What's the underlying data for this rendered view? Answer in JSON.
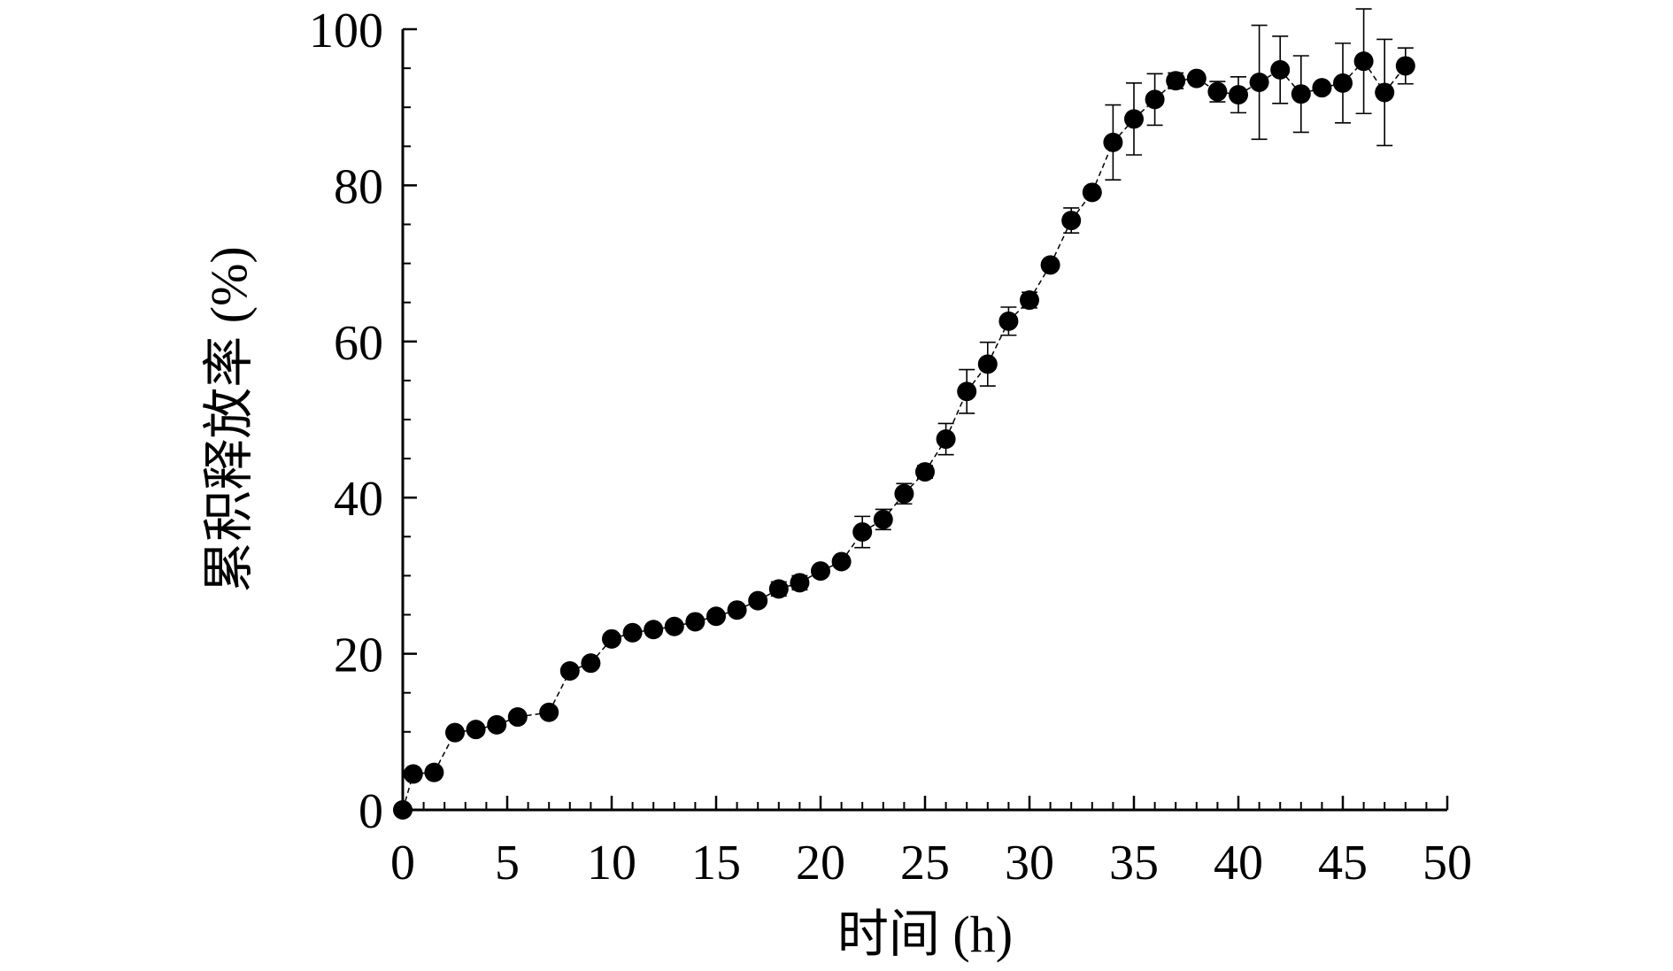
{
  "chart_data": {
    "type": "scatter",
    "title": "",
    "xlabel": "时间 (h)",
    "ylabel": "累积释放率 (%)",
    "xlim": [
      0,
      50
    ],
    "ylim": [
      0,
      100
    ],
    "x_ticks": [
      0,
      5,
      10,
      15,
      20,
      25,
      30,
      35,
      40,
      45,
      50
    ],
    "y_ticks": [
      0,
      20,
      40,
      60,
      80,
      100
    ],
    "x_minor_step": 1,
    "y_minor_step": 5,
    "grid": false,
    "legend": "none",
    "marker_color": "#000000",
    "line_style": "dashed",
    "series": [
      {
        "x": [
          0,
          0.5,
          1.5,
          2.5,
          3.5,
          4.5,
          5.5,
          7,
          8,
          9,
          10,
          11,
          12,
          13,
          14,
          15,
          16,
          17,
          18,
          19,
          20,
          21,
          22,
          23,
          24,
          25,
          26,
          27,
          28,
          29,
          30,
          31,
          32,
          33,
          34,
          35,
          36,
          37,
          38,
          39,
          40,
          41,
          42,
          43,
          44,
          45,
          46,
          47,
          48
        ],
        "y": [
          0,
          4.6,
          4.8,
          9.9,
          10.3,
          10.9,
          11.9,
          12.5,
          17.8,
          18.8,
          21.9,
          22.7,
          23.1,
          23.5,
          24.1,
          24.8,
          25.6,
          26.8,
          28.3,
          29.1,
          30.6,
          31.8,
          35.6,
          37.2,
          40.5,
          43.3,
          47.5,
          53.6,
          57.1,
          62.6,
          65.3,
          69.8,
          75.5,
          79.1,
          85.5,
          88.5,
          91.0,
          93.4,
          93.7,
          92.0,
          91.6,
          93.2,
          94.8,
          91.7,
          92.5,
          93.1,
          95.9,
          91.9,
          95.3
        ],
        "error": [
          0,
          0,
          0,
          0,
          0,
          0,
          0,
          0,
          0,
          0,
          0,
          0,
          0,
          0,
          0,
          0,
          0,
          0,
          0.9,
          0.9,
          0,
          0,
          2.0,
          1.3,
          1.3,
          0.8,
          2.0,
          2.8,
          2.8,
          1.8,
          1.0,
          0.6,
          1.6,
          0.7,
          4.8,
          4.6,
          3.3,
          1.0,
          0.6,
          1.3,
          2.3,
          7.3,
          4.3,
          4.9,
          0.6,
          5.1,
          6.7,
          6.8,
          2.3
        ]
      }
    ]
  }
}
